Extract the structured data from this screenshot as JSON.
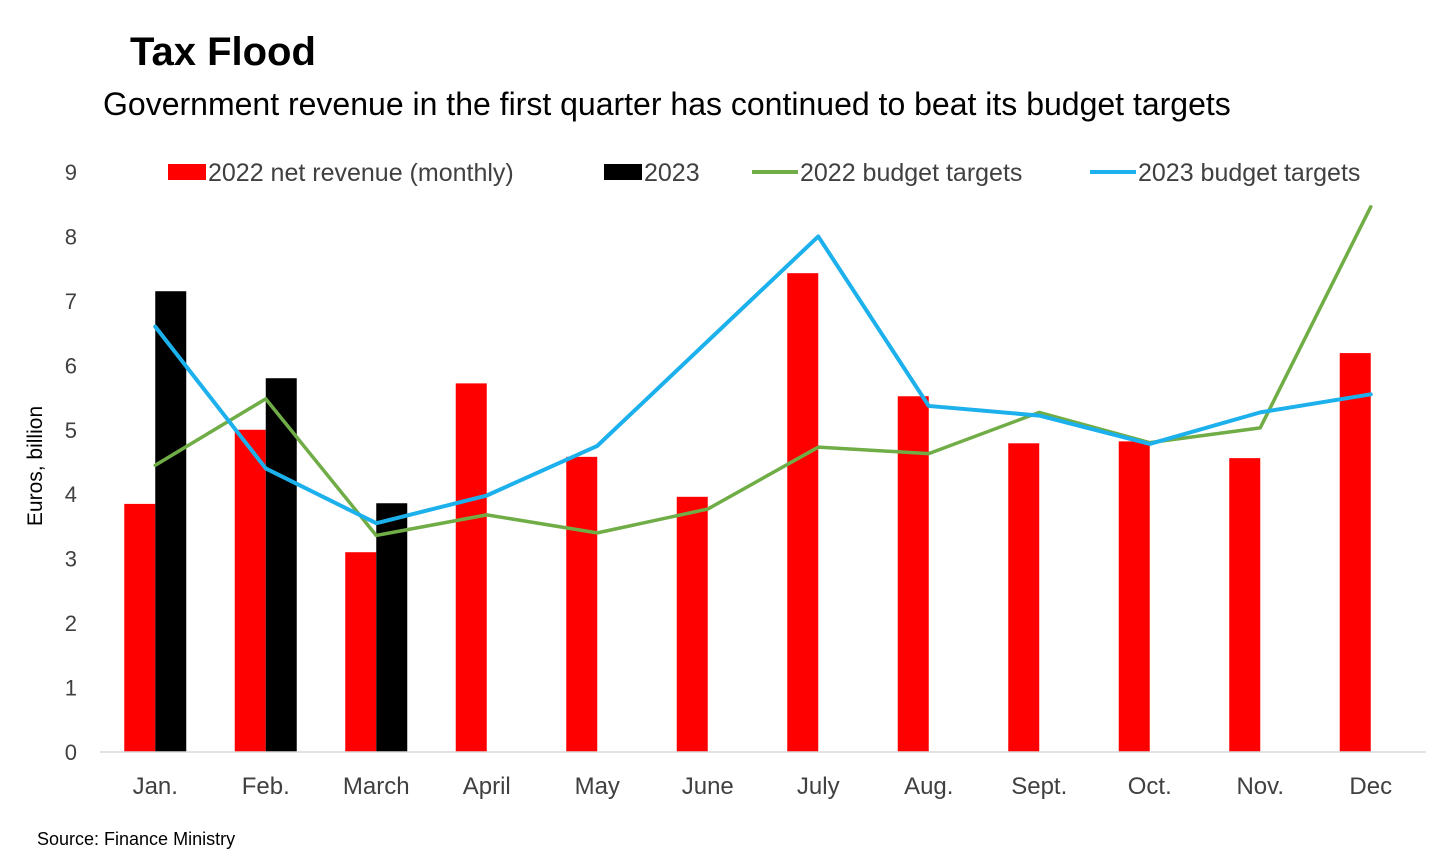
{
  "title": "Tax Flood",
  "subtitle": "Government revenue in the first quarter has continued to beat its budget targets",
  "source": "Source: Finance Ministry",
  "chart_data": {
    "type": "bar",
    "categories": [
      "Jan.",
      "Feb.",
      "March",
      "April",
      "May",
      "June",
      "July",
      "Aug.",
      "Sept.",
      "Oct.",
      "Nov.",
      "Dec"
    ],
    "ylabel": "Euros, billion",
    "xlabel": "",
    "ylim": [
      0,
      9
    ],
    "yticks": [
      "0",
      "1",
      "2",
      "3",
      "4",
      "5",
      "6",
      "7",
      "8",
      "9"
    ],
    "grid": false,
    "legend_position": "top",
    "bar_series": [
      {
        "name": "2022 net revenue (monthly)",
        "color": "#ff0000",
        "values": [
          3.85,
          5.0,
          3.1,
          5.72,
          4.58,
          3.96,
          7.43,
          5.52,
          4.79,
          4.82,
          4.56,
          6.19
        ]
      },
      {
        "name": "2023",
        "color": "#000000",
        "values": [
          7.15,
          5.8,
          3.86,
          null,
          null,
          null,
          null,
          null,
          null,
          null,
          null,
          null
        ]
      }
    ],
    "line_series": [
      {
        "name": "2022 budget targets",
        "color": "#70ad47",
        "values": [
          4.45,
          5.48,
          3.36,
          3.68,
          3.4,
          3.77,
          4.73,
          4.63,
          5.27,
          4.8,
          5.03,
          8.46
        ]
      },
      {
        "name": "2023 budget targets",
        "color": "#1cb0ec",
        "values": [
          6.6,
          4.4,
          3.55,
          3.98,
          4.75,
          null,
          8.0,
          5.37,
          5.22,
          4.78,
          5.27,
          5.55
        ]
      }
    ]
  }
}
